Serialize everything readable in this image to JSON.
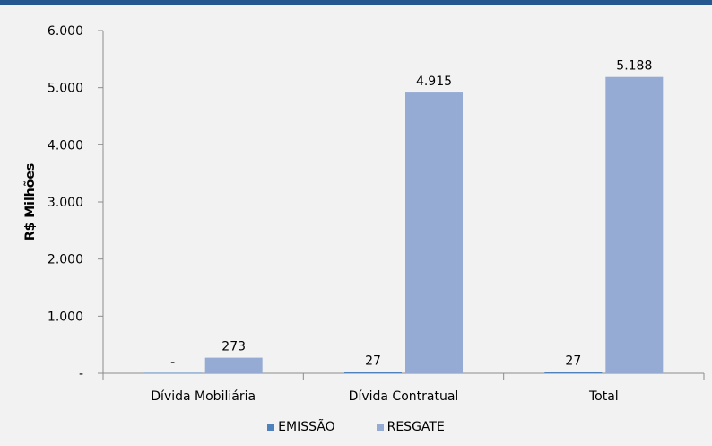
{
  "chart_data": {
    "type": "bar",
    "ylabel": "R$ Milhões",
    "ylim": [
      0,
      6000
    ],
    "yticks": [
      {
        "value": 0,
        "label": "-"
      },
      {
        "value": 1000,
        "label": "1.000"
      },
      {
        "value": 2000,
        "label": "2.000"
      },
      {
        "value": 3000,
        "label": "3.000"
      },
      {
        "value": 4000,
        "label": "4.000"
      },
      {
        "value": 5000,
        "label": "5.000"
      },
      {
        "value": 6000,
        "label": "6.000"
      }
    ],
    "categories": [
      "Dívida Mobiliária",
      "Dívida Contratual",
      "Total"
    ],
    "series": [
      {
        "name": "EMISSÃO",
        "color": "#4f81bd",
        "values": [
          0,
          27,
          27
        ],
        "labels": [
          "-",
          "27",
          "27"
        ]
      },
      {
        "name": "RESGATE",
        "color": "#95abd4",
        "values": [
          273,
          4915,
          5188
        ],
        "labels": [
          "273",
          "4.915",
          "5.188"
        ]
      }
    ],
    "grid": false,
    "legend_position": "bottom"
  },
  "colors": {
    "background": "#f2f2f2",
    "top_bar": "#24588f",
    "axis": "#8c8c8c"
  }
}
